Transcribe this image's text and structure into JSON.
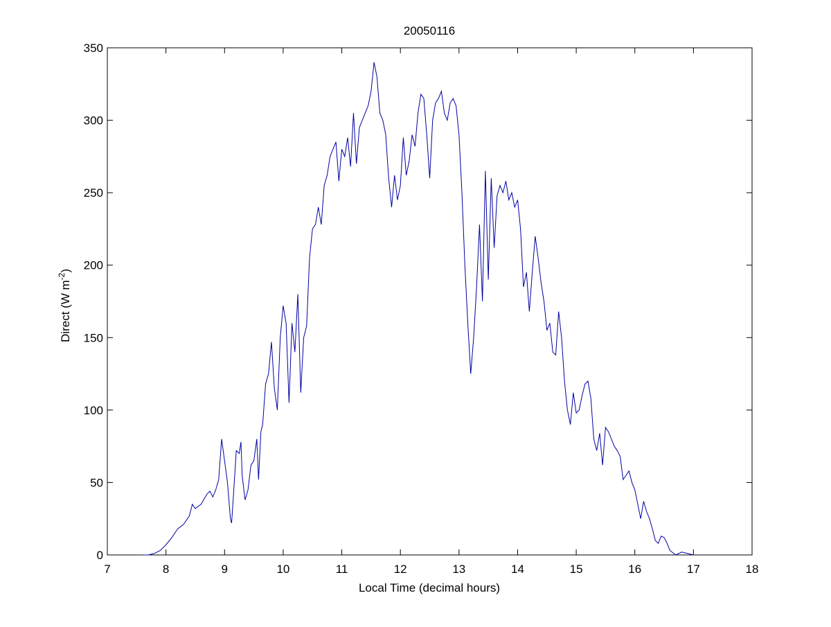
{
  "chart_data": {
    "type": "line",
    "title": "20050116",
    "xlabel": "Local Time (decimal hours)",
    "ylabel": [
      "Direct (W m",
      "-2",
      ")"
    ],
    "xlim": [
      7,
      18
    ],
    "xticks": [
      7,
      8,
      9,
      10,
      11,
      12,
      13,
      14,
      15,
      16,
      17,
      18
    ],
    "ylim": [
      0,
      350
    ],
    "yticks": [
      0,
      50,
      100,
      150,
      200,
      250,
      300,
      350
    ],
    "color": "#0000a0",
    "x": [
      7.6,
      7.7,
      7.8,
      7.9,
      8.0,
      8.1,
      8.2,
      8.3,
      8.4,
      8.45,
      8.5,
      8.6,
      8.7,
      8.75,
      8.8,
      8.85,
      8.9,
      8.95,
      9.0,
      9.05,
      9.1,
      9.12,
      9.15,
      9.2,
      9.25,
      9.28,
      9.3,
      9.35,
      9.4,
      9.45,
      9.5,
      9.55,
      9.58,
      9.62,
      9.65,
      9.7,
      9.75,
      9.8,
      9.85,
      9.9,
      9.95,
      10.0,
      10.05,
      10.1,
      10.15,
      10.2,
      10.25,
      10.3,
      10.35,
      10.4,
      10.45,
      10.5,
      10.55,
      10.6,
      10.65,
      10.7,
      10.75,
      10.8,
      10.85,
      10.9,
      10.95,
      11.0,
      11.05,
      11.1,
      11.15,
      11.2,
      11.25,
      11.3,
      11.35,
      11.4,
      11.45,
      11.5,
      11.55,
      11.6,
      11.65,
      11.7,
      11.75,
      11.8,
      11.85,
      11.9,
      11.95,
      12.0,
      12.05,
      12.1,
      12.15,
      12.2,
      12.25,
      12.3,
      12.35,
      12.4,
      12.45,
      12.5,
      12.55,
      12.6,
      12.65,
      12.7,
      12.75,
      12.8,
      12.85,
      12.9,
      12.95,
      13.0,
      13.05,
      13.1,
      13.15,
      13.2,
      13.25,
      13.3,
      13.35,
      13.4,
      13.45,
      13.5,
      13.55,
      13.6,
      13.65,
      13.7,
      13.75,
      13.8,
      13.85,
      13.9,
      13.95,
      14.0,
      14.05,
      14.1,
      14.15,
      14.2,
      14.25,
      14.3,
      14.35,
      14.4,
      14.45,
      14.5,
      14.55,
      14.6,
      14.65,
      14.7,
      14.75,
      14.8,
      14.85,
      14.9,
      14.95,
      15.0,
      15.05,
      15.1,
      15.15,
      15.2,
      15.25,
      15.3,
      15.35,
      15.4,
      15.45,
      15.5,
      15.55,
      15.6,
      15.65,
      15.7,
      15.75,
      15.8,
      15.85,
      15.9,
      15.95,
      16.0,
      16.05,
      16.1,
      16.15,
      16.2,
      16.25,
      16.3,
      16.35,
      16.4,
      16.45,
      16.5,
      16.55,
      16.6,
      16.7,
      16.8,
      16.9,
      17.0
    ],
    "values": [
      0,
      0,
      1,
      3,
      7,
      12,
      18,
      21,
      27,
      35,
      32,
      35,
      42,
      44,
      40,
      45,
      52,
      80,
      65,
      50,
      25,
      22,
      40,
      72,
      70,
      78,
      55,
      38,
      45,
      62,
      65,
      80,
      52,
      85,
      90,
      118,
      125,
      147,
      115,
      100,
      150,
      172,
      160,
      105,
      160,
      140,
      180,
      112,
      150,
      158,
      205,
      225,
      228,
      240,
      228,
      255,
      262,
      275,
      280,
      285,
      258,
      280,
      275,
      288,
      268,
      305,
      270,
      295,
      300,
      305,
      310,
      320,
      340,
      330,
      305,
      300,
      290,
      260,
      240,
      262,
      245,
      255,
      288,
      262,
      272,
      290,
      282,
      305,
      318,
      315,
      290,
      260,
      300,
      312,
      315,
      320,
      305,
      300,
      312,
      315,
      310,
      290,
      250,
      200,
      160,
      125,
      150,
      185,
      228,
      175,
      265,
      190,
      260,
      212,
      248,
      255,
      250,
      258,
      245,
      250,
      240,
      245,
      225,
      185,
      195,
      168,
      195,
      220,
      205,
      188,
      175,
      155,
      160,
      140,
      138,
      168,
      150,
      120,
      100,
      90,
      112,
      98,
      100,
      110,
      118,
      120,
      108,
      80,
      72,
      84,
      62,
      88,
      85,
      80,
      75,
      72,
      68,
      52,
      55,
      58,
      50,
      45,
      35,
      25,
      37,
      30,
      25,
      18,
      10,
      8,
      13,
      12,
      8,
      3,
      0,
      2,
      1,
      0
    ]
  }
}
